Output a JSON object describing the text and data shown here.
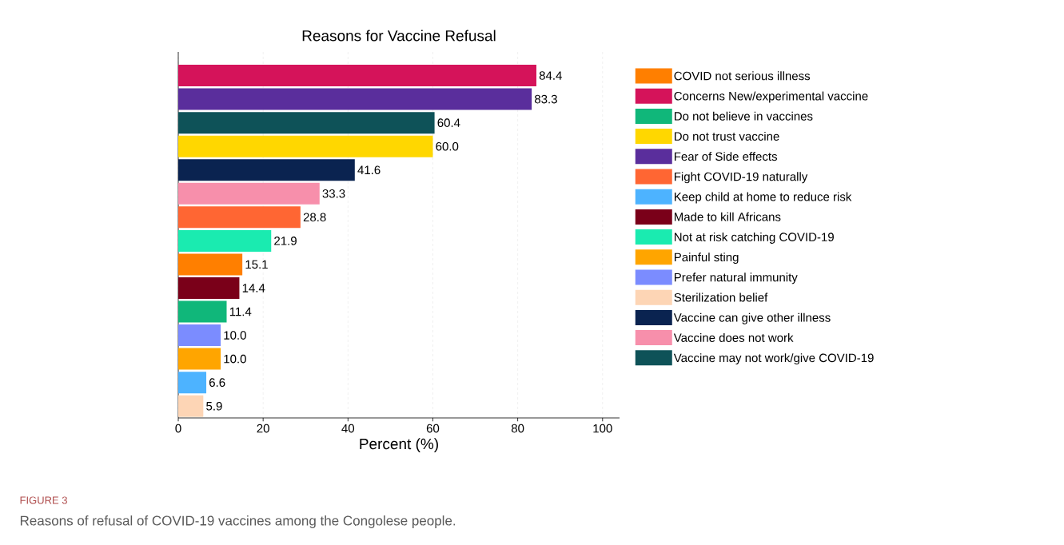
{
  "chart_data": {
    "type": "bar",
    "orientation": "horizontal",
    "title": "Reasons for Vaccine Refusal",
    "xlabel": "Percent (%)",
    "categories": [
      null,
      null,
      null,
      null,
      null,
      null,
      null,
      null,
      null,
      null,
      null,
      null,
      null,
      null,
      null
    ],
    "series": [
      {
        "name": "COVID not serious illness",
        "color": "#ff7f00",
        "values": [
          null,
          null,
          null,
          null,
          null,
          null,
          null,
          null,
          15.1,
          null,
          null,
          null,
          null,
          null,
          null
        ],
        "value_labels": [
          null,
          null,
          null,
          null,
          null,
          null,
          null,
          null,
          "15.1",
          null,
          null,
          null,
          null,
          null,
          null
        ]
      },
      {
        "name": "Concerns New/experimental vaccine",
        "color": "#d5135a",
        "values": [
          84.4,
          null,
          null,
          null,
          null,
          null,
          null,
          null,
          null,
          null,
          null,
          null,
          null,
          null,
          null
        ],
        "value_labels": [
          "84.4",
          null,
          null,
          null,
          null,
          null,
          null,
          null,
          null,
          null,
          null,
          null,
          null,
          null,
          null
        ]
      },
      {
        "name": "Do not believe in vaccines",
        "color": "#10b77a",
        "values": [
          null,
          null,
          null,
          null,
          null,
          null,
          null,
          null,
          null,
          null,
          11.4,
          null,
          null,
          null,
          null
        ],
        "value_labels": [
          null,
          null,
          null,
          null,
          null,
          null,
          null,
          null,
          null,
          null,
          "11.4",
          null,
          null,
          null,
          null
        ]
      },
      {
        "name": "Do not trust vaccine",
        "color": "#ffd700",
        "values": [
          null,
          null,
          null,
          60.0,
          null,
          null,
          null,
          null,
          null,
          null,
          null,
          null,
          null,
          null,
          null
        ],
        "value_labels": [
          null,
          null,
          null,
          "60.0",
          null,
          null,
          null,
          null,
          null,
          null,
          null,
          null,
          null,
          null,
          null
        ]
      },
      {
        "name": "Fear of Side effects",
        "color": "#5a2e9c",
        "values": [
          null,
          83.3,
          null,
          null,
          null,
          null,
          null,
          null,
          null,
          null,
          null,
          null,
          null,
          null,
          null
        ],
        "value_labels": [
          null,
          "83.3",
          null,
          null,
          null,
          null,
          null,
          null,
          null,
          null,
          null,
          null,
          null,
          null,
          null
        ]
      },
      {
        "name": "Fight COVID-19 naturally",
        "color": "#ff6633",
        "values": [
          null,
          null,
          null,
          null,
          null,
          null,
          28.8,
          null,
          null,
          null,
          null,
          null,
          null,
          null,
          null
        ],
        "value_labels": [
          null,
          null,
          null,
          null,
          null,
          null,
          "28.8",
          null,
          null,
          null,
          null,
          null,
          null,
          null,
          null
        ]
      },
      {
        "name": "Keep child at home to reduce risk",
        "color": "#4db3ff",
        "values": [
          null,
          null,
          null,
          null,
          null,
          null,
          null,
          null,
          null,
          null,
          null,
          null,
          null,
          6.6,
          null
        ],
        "value_labels": [
          null,
          null,
          null,
          null,
          null,
          null,
          null,
          null,
          null,
          null,
          null,
          null,
          null,
          "6.6",
          null
        ]
      },
      {
        "name": "Made to kill Africans",
        "color": "#7a0019",
        "values": [
          null,
          null,
          null,
          null,
          null,
          null,
          null,
          null,
          null,
          14.4,
          null,
          null,
          null,
          null,
          null
        ],
        "value_labels": [
          null,
          null,
          null,
          null,
          null,
          null,
          null,
          null,
          null,
          "14.4",
          null,
          null,
          null,
          null,
          null
        ]
      },
      {
        "name": "Not at risk catching COVID-19",
        "color": "#1aebb0",
        "values": [
          null,
          null,
          null,
          null,
          null,
          null,
          null,
          21.9,
          null,
          null,
          null,
          null,
          null,
          null,
          null
        ],
        "value_labels": [
          null,
          null,
          null,
          null,
          null,
          null,
          null,
          "21.9",
          null,
          null,
          null,
          null,
          null,
          null,
          null
        ]
      },
      {
        "name": "Painful sting",
        "color": "#ffa500",
        "values": [
          null,
          null,
          null,
          null,
          null,
          null,
          null,
          null,
          null,
          null,
          null,
          null,
          10.0,
          null,
          null
        ],
        "value_labels": [
          null,
          null,
          null,
          null,
          null,
          null,
          null,
          null,
          null,
          null,
          null,
          null,
          "10.0",
          null,
          null
        ]
      },
      {
        "name": "Prefer natural immunity",
        "color": "#7b8cff",
        "values": [
          null,
          null,
          null,
          null,
          null,
          null,
          null,
          null,
          null,
          null,
          null,
          10.0,
          null,
          null,
          null
        ],
        "value_labels": [
          null,
          null,
          null,
          null,
          null,
          null,
          null,
          null,
          null,
          null,
          null,
          "10.0",
          null,
          null,
          null
        ]
      },
      {
        "name": "Sterilization belief",
        "color": "#fdd5b5",
        "values": [
          null,
          null,
          null,
          null,
          null,
          null,
          null,
          null,
          null,
          null,
          null,
          null,
          null,
          null,
          5.9
        ],
        "value_labels": [
          null,
          null,
          null,
          null,
          null,
          null,
          null,
          null,
          null,
          null,
          null,
          null,
          null,
          null,
          "5.9"
        ]
      },
      {
        "name": "Vaccine can give other illness",
        "color": "#0a2350",
        "values": [
          null,
          null,
          null,
          null,
          41.6,
          null,
          null,
          null,
          null,
          null,
          null,
          null,
          null,
          null,
          null
        ],
        "value_labels": [
          null,
          null,
          null,
          null,
          "41.6",
          null,
          null,
          null,
          null,
          null,
          null,
          null,
          null,
          null,
          null
        ]
      },
      {
        "name": "Vaccine does not work",
        "color": "#f78fab",
        "values": [
          null,
          null,
          null,
          null,
          null,
          33.3,
          null,
          null,
          null,
          null,
          null,
          null,
          null,
          null,
          null
        ],
        "value_labels": [
          null,
          null,
          null,
          null,
          null,
          "33.3",
          null,
          null,
          null,
          null,
          null,
          null,
          null,
          null,
          null
        ]
      },
      {
        "name": "Vaccine may not work/give COVID-19",
        "color": "#0e5258",
        "values": [
          null,
          null,
          60.4,
          null,
          null,
          null,
          null,
          null,
          null,
          null,
          null,
          null,
          null,
          null,
          null
        ],
        "value_labels": [
          null,
          null,
          "60.4",
          null,
          null,
          null,
          null,
          null,
          null,
          null,
          null,
          null,
          null,
          null,
          null
        ]
      }
    ],
    "xlim": [
      0,
      104
    ],
    "xticks": [
      0,
      20,
      40,
      60,
      80,
      100
    ],
    "grid": "x",
    "legend": "right",
    "annotations": [
      "FIGURE 3",
      "Reasons of refusal of COVID-19 vaccines among the Congolese people."
    ]
  }
}
